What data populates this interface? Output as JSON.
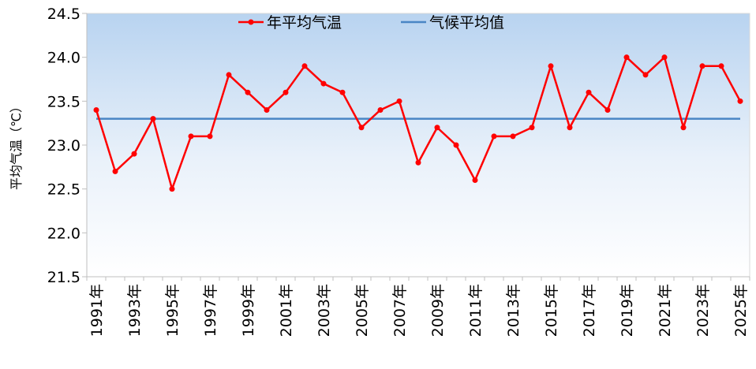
{
  "chart_data": {
    "type": "line",
    "title": "",
    "xlabel": "",
    "ylabel": "平均气温（℃）",
    "ylim": [
      21.5,
      24.5
    ],
    "yticks": [
      "21.5",
      "22.0",
      "22.5",
      "23.0",
      "23.5",
      "24.0",
      "24.5"
    ],
    "x": [
      "1991年",
      "1992年",
      "1993年",
      "1994年",
      "1995年",
      "1996年",
      "1997年",
      "1998年",
      "1999年",
      "2000年",
      "2001年",
      "2002年",
      "2003年",
      "2004年",
      "2005年",
      "2006年",
      "2007年",
      "2008年",
      "2009年",
      "2010年",
      "2011年",
      "2012年",
      "2013年",
      "2014年",
      "2015年",
      "2016年",
      "2017年",
      "2018年",
      "2019年",
      "2020年",
      "2021年",
      "2022年",
      "2023年",
      "2024年",
      "2025年"
    ],
    "xtick_labels": [
      "1991年",
      "1993年",
      "1995年",
      "1997年",
      "1999年",
      "2001年",
      "2003年",
      "2005年",
      "2007年",
      "2009年",
      "2011年",
      "2013年",
      "2015年",
      "2017年",
      "2019年",
      "2021年",
      "2023年",
      "2025年"
    ],
    "series": [
      {
        "name": "年平均气温",
        "color": "#ff0000",
        "marker": "circle",
        "values": [
          23.4,
          22.7,
          22.9,
          23.3,
          22.5,
          23.1,
          23.1,
          23.8,
          23.6,
          23.4,
          23.6,
          23.9,
          23.7,
          23.6,
          23.2,
          23.4,
          23.5,
          22.8,
          23.2,
          23.0,
          22.6,
          23.1,
          23.1,
          23.2,
          23.9,
          23.2,
          23.6,
          23.4,
          24.0,
          23.8,
          24.0,
          23.2,
          23.9,
          23.9,
          23.5
        ]
      },
      {
        "name": "气候平均值",
        "color": "#4a86c5",
        "marker": "none",
        "values": [
          23.3,
          23.3,
          23.3,
          23.3,
          23.3,
          23.3,
          23.3,
          23.3,
          23.3,
          23.3,
          23.3,
          23.3,
          23.3,
          23.3,
          23.3,
          23.3,
          23.3,
          23.3,
          23.3,
          23.3,
          23.3,
          23.3,
          23.3,
          23.3,
          23.3,
          23.3,
          23.3,
          23.3,
          23.3,
          23.3,
          23.3,
          23.3,
          23.3,
          23.3,
          23.3
        ]
      }
    ],
    "grid": false,
    "legend_position": "top-center",
    "background": "gradient light-blue to white"
  }
}
